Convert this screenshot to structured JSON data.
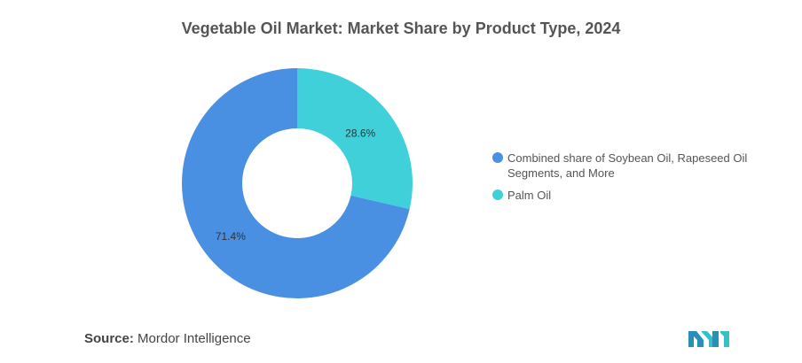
{
  "title": "Vegetable Oil Market: Market Share by Product Type, 2024",
  "chart_data": {
    "type": "pie",
    "donut": true,
    "categories": [
      "Combined share of Soybean Oil, Rapeseed Oil Segments, and More",
      "Palm Oil"
    ],
    "values": [
      71.4,
      28.6
    ],
    "labels": [
      "71.4%",
      "28.6%"
    ],
    "colors": [
      "#4a90e2",
      "#3fd0d9"
    ],
    "legend": "right"
  },
  "source": {
    "label": "Source:",
    "text": "Mordor Intelligence"
  }
}
